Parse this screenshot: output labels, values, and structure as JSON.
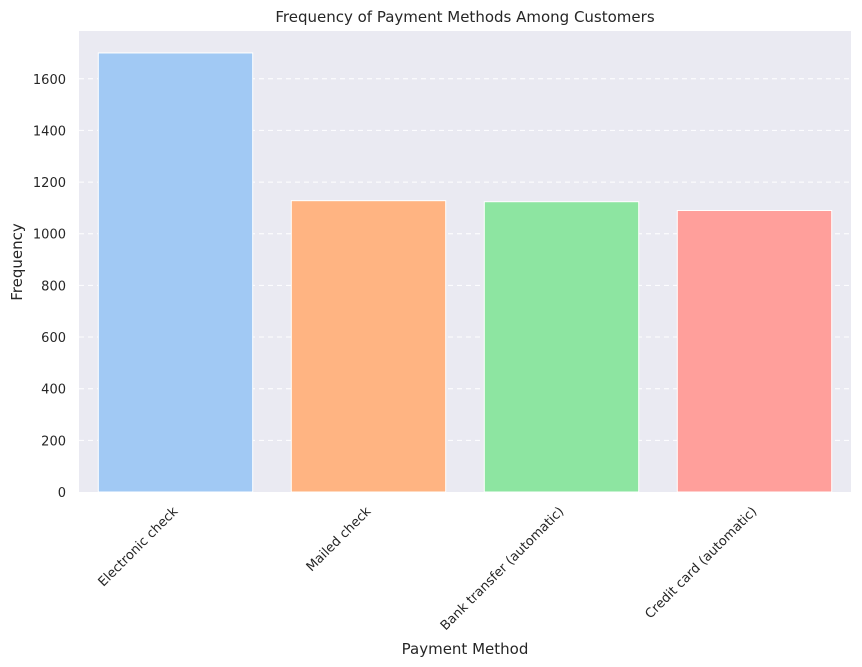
{
  "chart_data": {
    "type": "bar",
    "title": "Frequency of Payment Methods Among Customers",
    "xlabel": "Payment Method",
    "ylabel": "Frequency",
    "categories": [
      "Electronic check",
      "Mailed check",
      "Bank transfer (automatic)",
      "Credit card (automatic)"
    ],
    "values": [
      1700,
      1128,
      1124,
      1090
    ],
    "ylim": [
      0,
      1785
    ],
    "yticks": [
      0,
      200,
      400,
      600,
      800,
      1000,
      1200,
      1400,
      1600
    ],
    "grid": "horizontal dashed",
    "colors": [
      "#a1c9f4",
      "#ffb482",
      "#8de5a1",
      "#ff9f9b"
    ],
    "background": "#eaeaf2"
  }
}
